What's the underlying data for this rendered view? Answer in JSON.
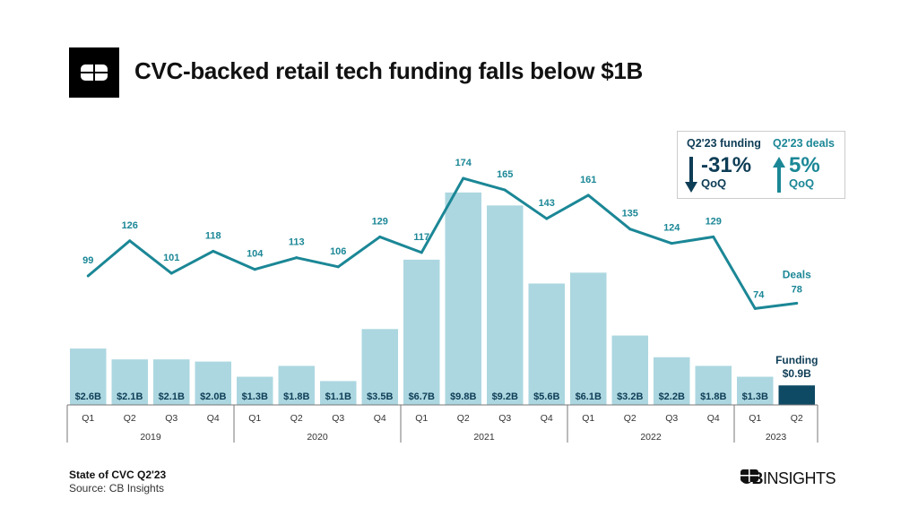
{
  "title": "CVC-backed retail tech funding falls below $1B",
  "callout": {
    "funding_header": "Q2'23 funding",
    "funding_change": "-31%",
    "funding_period": "QoQ",
    "deals_header": "Q2'23 deals",
    "deals_change": "5%",
    "deals_period": "QoQ"
  },
  "footer": {
    "line1": "State of CVC Q2'23",
    "line2": "Source: CB Insights",
    "brand_bold": "CB",
    "brand_rest": "INSIGHTS"
  },
  "colors": {
    "bar": "#acd7e0",
    "bar_highlight": "#0e4a64",
    "line": "#1b8796",
    "dark": "#0e3d56"
  },
  "chart_data": {
    "type": "bar+line",
    "title": "CVC-backed retail tech funding falls below $1B",
    "categories": [
      "Q1",
      "Q2",
      "Q3",
      "Q4",
      "Q1",
      "Q2",
      "Q3",
      "Q4",
      "Q1",
      "Q2",
      "Q3",
      "Q4",
      "Q1",
      "Q2",
      "Q3",
      "Q4",
      "Q1",
      "Q2"
    ],
    "years": [
      {
        "label": "2019",
        "span": 4
      },
      {
        "label": "2020",
        "span": 4
      },
      {
        "label": "2021",
        "span": 4
      },
      {
        "label": "2022",
        "span": 4
      },
      {
        "label": "2023",
        "span": 2
      }
    ],
    "series": [
      {
        "name": "Funding",
        "type": "bar",
        "unit": "$B",
        "values": [
          2.6,
          2.1,
          2.1,
          2.0,
          1.3,
          1.8,
          1.1,
          3.5,
          6.7,
          9.8,
          9.2,
          5.6,
          6.1,
          3.2,
          2.2,
          1.8,
          1.3,
          0.9
        ],
        "labels": [
          "$2.6B",
          "$2.1B",
          "$2.1B",
          "$2.0B",
          "$1.3B",
          "$1.8B",
          "$1.1B",
          "$3.5B",
          "$6.7B",
          "$9.8B",
          "$9.2B",
          "$5.6B",
          "$6.1B",
          "$3.2B",
          "$2.2B",
          "$1.8B",
          "$1.3B",
          "$0.9B"
        ]
      },
      {
        "name": "Deals",
        "type": "line",
        "values": [
          99,
          126,
          101,
          118,
          104,
          113,
          106,
          129,
          117,
          174,
          165,
          143,
          161,
          135,
          124,
          129,
          74,
          78
        ]
      }
    ],
    "legend_labels": {
      "funding": "Funding",
      "deals": "Deals"
    },
    "grid": false
  }
}
